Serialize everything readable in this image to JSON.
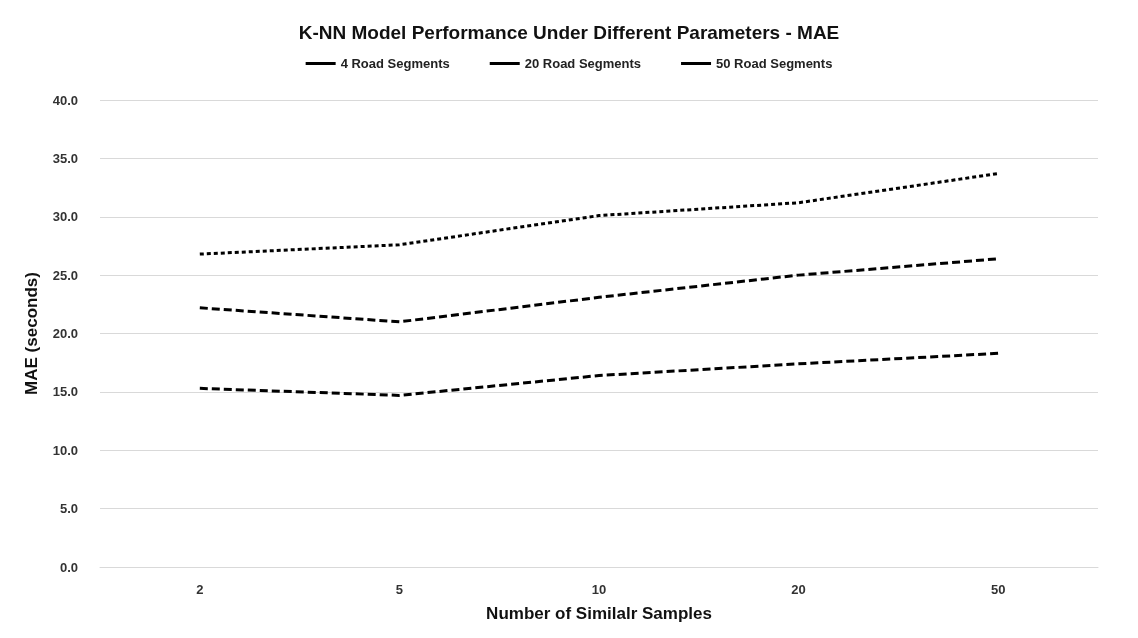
{
  "chart_data": {
    "type": "line",
    "title": "K-NN Model Performance Under Different Parameters - MAE",
    "xlabel": "Number of Similalr Samples",
    "ylabel": "MAE (seconds)",
    "categories": [
      "2",
      "5",
      "10",
      "20",
      "50"
    ],
    "series": [
      {
        "name": "4 Road Segments",
        "color": "#000000",
        "line_style": "dashed",
        "values": [
          15.3,
          14.7,
          16.4,
          17.4,
          18.3
        ]
      },
      {
        "name": "20 Road Segments",
        "color": "#000000",
        "line_style": "dashed",
        "values": [
          22.2,
          21.0,
          23.1,
          25.0,
          26.4
        ]
      },
      {
        "name": "50 Road Segments",
        "color": "#000000",
        "line_style": "dotted",
        "values": [
          26.8,
          27.6,
          30.1,
          31.2,
          33.7
        ]
      }
    ],
    "ylim": [
      0,
      40
    ],
    "yticks": [
      {
        "value": 0,
        "label": "0.0"
      },
      {
        "value": 5,
        "label": "5.0"
      },
      {
        "value": 10,
        "label": "10.0"
      },
      {
        "value": 15,
        "label": "15.0"
      },
      {
        "value": 20,
        "label": "20.0"
      },
      {
        "value": 25,
        "label": "25.0"
      },
      {
        "value": 30,
        "label": "30.0"
      },
      {
        "value": 35,
        "label": "35.0"
      },
      {
        "value": 40,
        "label": "40.0"
      }
    ],
    "grid": "y",
    "legend": "top",
    "marker": "none"
  }
}
